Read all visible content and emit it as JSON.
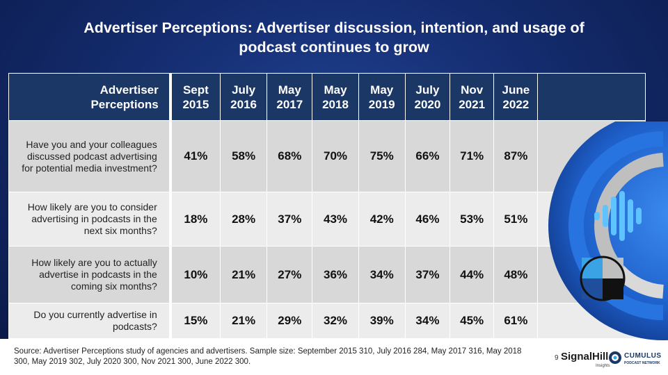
{
  "title": "Advertiser Perceptions: Advertiser discussion, intention, and usage of podcast continues to grow",
  "table": {
    "header_label": "Advertiser Perceptions",
    "columns": [
      "Sept 2015",
      "July 2016",
      "May 2017",
      "May 2018",
      "May 2019",
      "July 2020",
      "Nov 2021",
      "June 2022"
    ],
    "rows": [
      {
        "question": "Have you and your colleagues discussed podcast advertising for potential media investment?",
        "values": [
          "41%",
          "58%",
          "68%",
          "70%",
          "75%",
          "66%",
          "71%",
          "87%"
        ]
      },
      {
        "question": "How likely are you to consider advertising in podcasts in the next six months?",
        "values": [
          "18%",
          "28%",
          "37%",
          "43%",
          "42%",
          "46%",
          "53%",
          "51%"
        ]
      },
      {
        "question": "How likely are you to actually advertise in podcasts in the coming six months?",
        "values": [
          "10%",
          "21%",
          "27%",
          "36%",
          "34%",
          "37%",
          "44%",
          "48%"
        ]
      },
      {
        "question": "Do you currently advertise in podcasts?",
        "values": [
          "15%",
          "21%",
          "29%",
          "32%",
          "39%",
          "34%",
          "45%",
          "61%"
        ]
      }
    ]
  },
  "source": "Source: Advertiser Perceptions study of agencies and advertisers. Sample size: September 2015 310, July 2016 284, May 2017 316, May 2018 300, May 2019 302, July 2020 300, Nov 2021 300, June 2022 300.",
  "page_number": "9",
  "logos": {
    "signalhill": "SignalHill",
    "signalhill_sub": "Insights",
    "cumulus": "CUMULUS",
    "cumulus_sub": "PODCAST NETWORK"
  },
  "icons": [
    "podcast-logo",
    "cumulus-icon"
  ],
  "colors": {
    "header_bg": "#1b3766",
    "row_dark": "#d8d8d8",
    "row_light": "#ececec",
    "accent_blue": "#1e6fd9"
  }
}
